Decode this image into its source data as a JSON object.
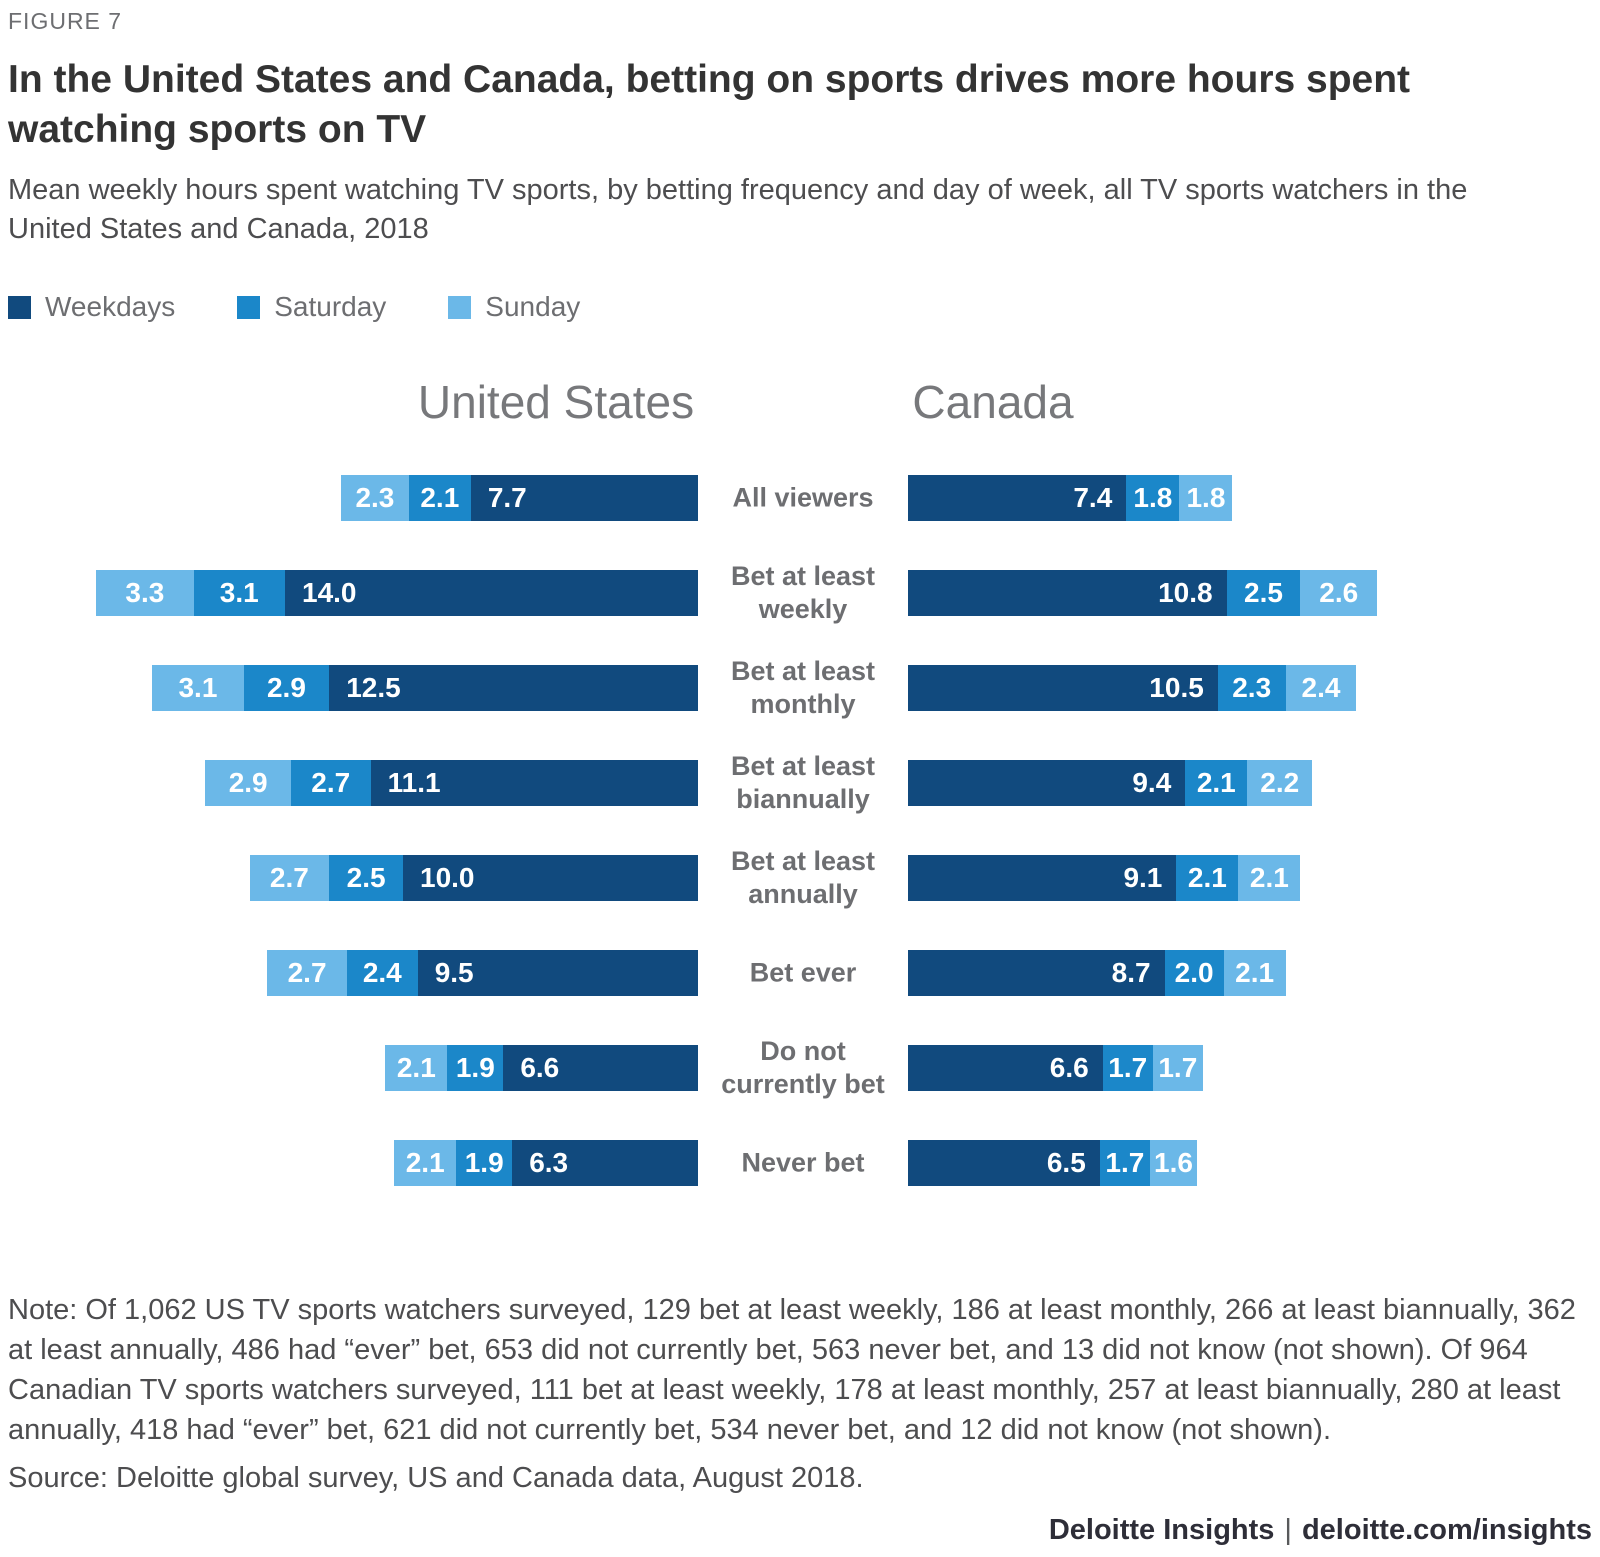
{
  "figure_label": "FIGURE 7",
  "title": "In the United States and Canada, betting on sports drives more hours spent watching sports on TV",
  "subtitle": "Mean weekly hours spent watching TV sports, by betting frequency and day of week, all TV sports watchers in the United States and Canada, 2018",
  "legend": [
    {
      "label": "Weekdays",
      "color": "#114A7E"
    },
    {
      "label": "Saturday",
      "color": "#1B87C9"
    },
    {
      "label": "Sunday",
      "color": "#6BB8E8"
    }
  ],
  "columns": {
    "left": "United States",
    "right": "Canada"
  },
  "chart_data": {
    "type": "bar",
    "variant": "diverging-stacked-horizontal",
    "unit": "mean weekly hours watching TV sports",
    "categories": [
      "All viewers",
      "Bet at least weekly",
      "Bet at least monthly",
      "Bet at least biannually",
      "Bet at least annually",
      "Bet ever",
      "Do not currently bet",
      "Never bet"
    ],
    "panels": {
      "left": "United States",
      "right": "Canada"
    },
    "series": [
      {
        "name": "Weekdays",
        "color": "#114A7E",
        "united_states": [
          7.7,
          14.0,
          12.5,
          11.1,
          10.0,
          9.5,
          6.6,
          6.3
        ],
        "canada": [
          7.4,
          10.8,
          10.5,
          9.4,
          9.1,
          8.7,
          6.6,
          6.5
        ]
      },
      {
        "name": "Saturday",
        "color": "#1B87C9",
        "united_states": [
          2.1,
          3.1,
          2.9,
          2.7,
          2.5,
          2.4,
          1.9,
          1.9
        ],
        "canada": [
          1.8,
          2.5,
          2.3,
          2.1,
          2.1,
          2.0,
          1.7,
          1.7
        ]
      },
      {
        "name": "Sunday",
        "color": "#6BB8E8",
        "united_states": [
          2.3,
          3.3,
          3.1,
          2.9,
          2.7,
          2.7,
          2.1,
          2.1
        ],
        "canada": [
          1.8,
          2.6,
          2.4,
          2.2,
          2.1,
          2.1,
          1.7,
          1.6
        ]
      }
    ],
    "segment_order_united_states": [
      "Sunday",
      "Saturday",
      "Weekdays"
    ],
    "segment_order_canada": [
      "Weekdays",
      "Saturday",
      "Sunday"
    ],
    "legend_position": "top-left",
    "value_labels": "inside segments, one decimal place"
  },
  "note": "Note: Of 1,062 US TV sports watchers surveyed, 129 bet at least weekly, 186 at least monthly, 266 at least biannually, 362 at least annually, 486 had “ever” bet, 653 did not currently bet, 563 never bet, and 13 did not know (not shown). Of 964 Canadian TV sports watchers surveyed, 111 bet at least weekly, 178 at least monthly, 257 at least biannually, 280 at least annually, 418 had “ever” bet, 621 did not currently bet, 534 never bet, and 12 did not know (not shown).",
  "source": "Source: Deloitte global survey, US and Canada data, August 2018.",
  "footer": {
    "brand": "Deloitte Insights",
    "separator": "|",
    "url": "deloitte.com/insights"
  }
}
